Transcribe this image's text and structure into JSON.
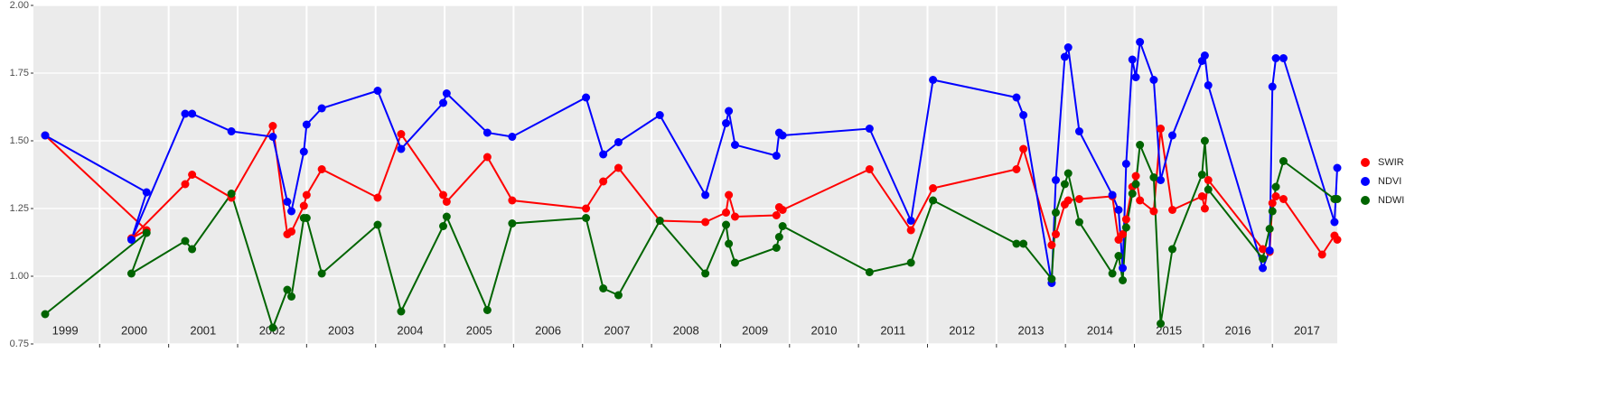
{
  "chart_data": {
    "type": "line",
    "xlim": [
      1999.04,
      2017.94
    ],
    "ylim": [
      0.75,
      2.0
    ],
    "yticks": [
      {
        "value": 0.75,
        "label": "0.75"
      },
      {
        "value": 1.0,
        "label": "1.00"
      },
      {
        "value": 1.25,
        "label": "1.25"
      },
      {
        "value": 1.5,
        "label": "1.50"
      },
      {
        "value": 1.75,
        "label": "1.75"
      },
      {
        "value": 2.0,
        "label": "2.00"
      }
    ],
    "xticks": [
      {
        "value": 1999.5,
        "label": "1999"
      },
      {
        "value": 2000.5,
        "label": "2000"
      },
      {
        "value": 2001.5,
        "label": "2001"
      },
      {
        "value": 2002.5,
        "label": "2002"
      },
      {
        "value": 2003.5,
        "label": "2003"
      },
      {
        "value": 2004.5,
        "label": "2004"
      },
      {
        "value": 2005.5,
        "label": "2005"
      },
      {
        "value": 2006.5,
        "label": "2006"
      },
      {
        "value": 2007.5,
        "label": "2007"
      },
      {
        "value": 2008.5,
        "label": "2008"
      },
      {
        "value": 2009.5,
        "label": "2009"
      },
      {
        "value": 2010.5,
        "label": "2010"
      },
      {
        "value": 2011.5,
        "label": "2011"
      },
      {
        "value": 2012.5,
        "label": "2012"
      },
      {
        "value": 2013.5,
        "label": "2013"
      },
      {
        "value": 2014.5,
        "label": "2014"
      },
      {
        "value": 2015.5,
        "label": "2015"
      },
      {
        "value": 2016.5,
        "label": "2016"
      },
      {
        "value": 2017.5,
        "label": "2017"
      }
    ],
    "x_grid": [
      2000,
      2001,
      2002,
      2003,
      2004,
      2005,
      2006,
      2007,
      2008,
      2009,
      2010,
      2011,
      2012,
      2013,
      2014,
      2015,
      2016,
      2017
    ],
    "grid": true,
    "series": [
      {
        "name": "SWIR",
        "color": "#ff0000",
        "x": [
          1999.21,
          2000.68,
          2000.46,
          2001.24,
          2001.34,
          2001.91,
          2002.51,
          2002.72,
          2002.78,
          2002.96,
          2003.0,
          2003.22,
          2004.03,
          2004.37,
          2004.98,
          2005.03,
          2005.62,
          2005.98,
          2007.05,
          2007.3,
          2007.52,
          2008.12,
          2008.78,
          2009.08,
          2009.12,
          2009.21,
          2009.81,
          2009.85,
          2009.9,
          2011.16,
          2011.76,
          2012.08,
          2013.29,
          2013.39,
          2013.8,
          2013.86,
          2013.99,
          2014.04,
          2014.2,
          2014.68,
          2014.77,
          2014.83,
          2014.88,
          2014.97,
          2015.02,
          2015.08,
          2015.28,
          2015.38,
          2015.55,
          2015.98,
          2016.02,
          2016.07,
          2016.86,
          2016.96,
          2017.0,
          2017.05,
          2017.16,
          2017.72,
          2017.9,
          2017.94
        ],
        "values": [
          1.52,
          1.17,
          1.14,
          1.34,
          1.375,
          1.29,
          1.555,
          1.155,
          1.165,
          1.26,
          1.3,
          1.395,
          1.29,
          1.525,
          1.3,
          1.275,
          1.44,
          1.28,
          1.25,
          1.35,
          1.4,
          1.205,
          1.2,
          1.235,
          1.3,
          1.22,
          1.225,
          1.255,
          1.245,
          1.395,
          1.17,
          1.325,
          1.395,
          1.47,
          1.115,
          1.155,
          1.265,
          1.28,
          1.285,
          1.295,
          1.135,
          1.155,
          1.21,
          1.33,
          1.37,
          1.28,
          1.24,
          1.545,
          1.245,
          1.295,
          1.25,
          1.355,
          1.1,
          1.09,
          1.27,
          1.295,
          1.285,
          1.08,
          1.15,
          1.135
        ]
      },
      {
        "name": "NDVI",
        "color": "#0000ff",
        "x": [
          1999.21,
          2000.68,
          2000.46,
          2001.24,
          2001.34,
          2001.91,
          2002.51,
          2002.72,
          2002.78,
          2002.96,
          2003.0,
          2003.22,
          2004.03,
          2004.37,
          2004.98,
          2005.03,
          2005.62,
          2005.98,
          2007.05,
          2007.3,
          2007.52,
          2008.12,
          2008.78,
          2009.08,
          2009.12,
          2009.21,
          2009.81,
          2009.85,
          2009.9,
          2011.16,
          2011.76,
          2012.08,
          2013.29,
          2013.39,
          2013.8,
          2013.86,
          2013.99,
          2014.04,
          2014.2,
          2014.68,
          2014.77,
          2014.83,
          2014.88,
          2014.97,
          2015.02,
          2015.08,
          2015.28,
          2015.38,
          2015.55,
          2015.98,
          2016.02,
          2016.07,
          2016.86,
          2016.96,
          2017.0,
          2017.05,
          2017.16,
          2017.9,
          2017.94
        ],
        "values": [
          1.52,
          1.31,
          1.135,
          1.6,
          1.6,
          1.535,
          1.515,
          1.275,
          1.24,
          1.46,
          1.56,
          1.62,
          1.685,
          1.47,
          1.64,
          1.675,
          1.53,
          1.515,
          1.66,
          1.45,
          1.495,
          1.595,
          1.3,
          1.565,
          1.61,
          1.485,
          1.445,
          1.53,
          1.52,
          1.545,
          1.205,
          1.725,
          1.66,
          1.595,
          0.975,
          1.355,
          1.81,
          1.845,
          1.535,
          1.3,
          1.245,
          1.03,
          1.415,
          1.8,
          1.735,
          1.865,
          1.725,
          1.355,
          1.52,
          1.795,
          1.815,
          1.705,
          1.03,
          1.095,
          1.7,
          1.805,
          1.805,
          1.2,
          1.4
        ]
      },
      {
        "name": "NDWI",
        "color": "#006400",
        "x": [
          1999.21,
          2000.68,
          2000.46,
          2001.24,
          2001.34,
          2001.91,
          2002.51,
          2002.72,
          2002.78,
          2002.96,
          2003.0,
          2003.22,
          2004.03,
          2004.37,
          2004.98,
          2005.03,
          2005.62,
          2005.98,
          2007.05,
          2007.3,
          2007.52,
          2008.12,
          2008.78,
          2009.08,
          2009.12,
          2009.21,
          2009.81,
          2009.85,
          2009.9,
          2011.16,
          2011.76,
          2012.08,
          2013.29,
          2013.39,
          2013.8,
          2013.86,
          2013.99,
          2014.04,
          2014.2,
          2014.68,
          2014.77,
          2014.83,
          2014.88,
          2014.97,
          2015.02,
          2015.08,
          2015.28,
          2015.38,
          2015.55,
          2015.98,
          2016.02,
          2016.07,
          2016.86,
          2016.96,
          2017.0,
          2017.05,
          2017.16,
          2017.9,
          2017.94
        ],
        "values": [
          0.86,
          1.16,
          1.01,
          1.13,
          1.1,
          1.305,
          0.81,
          0.95,
          0.925,
          1.215,
          1.215,
          1.01,
          1.19,
          0.87,
          1.185,
          1.22,
          0.875,
          1.195,
          1.215,
          0.955,
          0.93,
          1.205,
          1.01,
          1.19,
          1.12,
          1.05,
          1.105,
          1.145,
          1.185,
          1.015,
          1.05,
          1.28,
          1.12,
          1.12,
          0.99,
          1.235,
          1.34,
          1.38,
          1.2,
          1.01,
          1.075,
          0.985,
          1.18,
          1.305,
          1.34,
          1.485,
          1.365,
          0.825,
          1.1,
          1.375,
          1.5,
          1.32,
          1.065,
          1.175,
          1.24,
          1.33,
          1.425,
          1.285,
          1.285
        ]
      }
    ]
  }
}
